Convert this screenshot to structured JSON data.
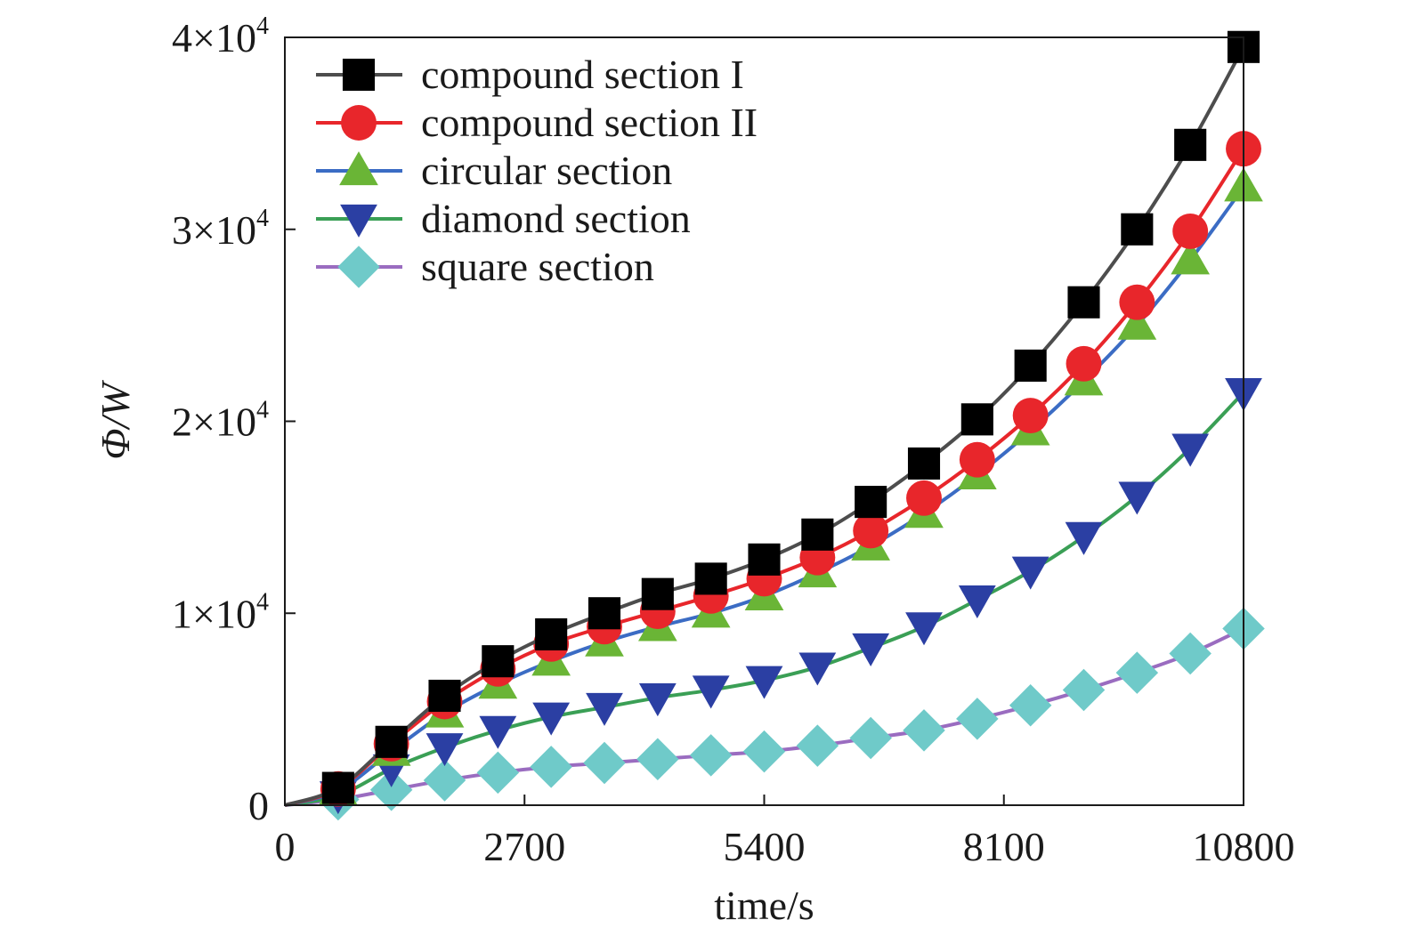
{
  "chart_data": {
    "type": "line",
    "xlabel": "time/s",
    "ylabel": "Φ/W",
    "xlim": [
      0,
      10800
    ],
    "ylim": [
      0,
      40000
    ],
    "x_ticks": [
      {
        "value": 0,
        "label": "0"
      },
      {
        "value": 2700,
        "label": "2700"
      },
      {
        "value": 5400,
        "label": "5400"
      },
      {
        "value": 8100,
        "label": "8100"
      },
      {
        "value": 10800,
        "label": "10800"
      }
    ],
    "y_ticks": [
      {
        "value": 0,
        "label": "0",
        "mant": "",
        "exp": ""
      },
      {
        "value": 10000,
        "label": "1×10^4",
        "mant": "1×10",
        "exp": "4"
      },
      {
        "value": 20000,
        "label": "2×10^4",
        "mant": "2×10",
        "exp": "4"
      },
      {
        "value": 30000,
        "label": "3×10^4",
        "mant": "3×10",
        "exp": "4"
      },
      {
        "value": 40000,
        "label": "4×10^4",
        "mant": "4×10",
        "exp": "4"
      }
    ],
    "legend_position": "top-left",
    "grid": false,
    "x": [
      0,
      600,
      1200,
      1800,
      2400,
      3000,
      3600,
      4200,
      4800,
      5400,
      6000,
      6600,
      7200,
      7800,
      8400,
      9000,
      9600,
      10200,
      10800
    ],
    "series": [
      {
        "name": "compound section I",
        "marker": "square",
        "line_color": "#4d4d4d",
        "marker_color": "#000000",
        "values": [
          0,
          900,
          3300,
          5700,
          7500,
          8900,
          10000,
          11000,
          11800,
          12800,
          14100,
          15800,
          17800,
          20100,
          22900,
          26200,
          30000,
          34400,
          39500
        ]
      },
      {
        "name": "compound section II",
        "marker": "circle",
        "line_color": "#e8262b",
        "marker_color": "#e8262b",
        "values": [
          0,
          850,
          3200,
          5400,
          7100,
          8400,
          9300,
          10100,
          10900,
          11800,
          12900,
          14300,
          16000,
          18000,
          20300,
          23000,
          26200,
          29900,
          34200
        ]
      },
      {
        "name": "circular section",
        "marker": "triangle-up",
        "line_color": "#3b6cc4",
        "marker_color": "#6ab536",
        "values": [
          0,
          750,
          2800,
          4800,
          6300,
          7500,
          8500,
          9300,
          10000,
          10900,
          12100,
          13500,
          15200,
          17200,
          19500,
          22100,
          25000,
          28400,
          32200
        ]
      },
      {
        "name": "diamond section",
        "marker": "triangle-down",
        "line_color": "#3a9f55",
        "marker_color": "#2b3fa3",
        "values": [
          0,
          500,
          1900,
          3000,
          3900,
          4600,
          5100,
          5600,
          6000,
          6500,
          7200,
          8200,
          9300,
          10700,
          12200,
          14000,
          16100,
          18600,
          21500
        ]
      },
      {
        "name": "square section",
        "marker": "diamond",
        "line_color": "#9a6cc0",
        "marker_color": "#6fcac9",
        "values": [
          0,
          300,
          800,
          1300,
          1700,
          2000,
          2200,
          2400,
          2600,
          2800,
          3100,
          3500,
          3900,
          4500,
          5200,
          6000,
          6900,
          7900,
          9200
        ]
      }
    ]
  }
}
